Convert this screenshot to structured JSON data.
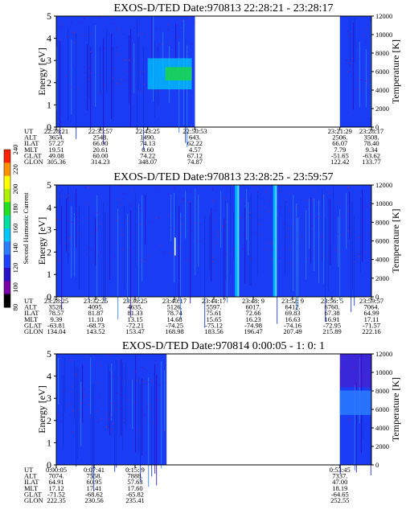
{
  "chart_data": [
    {
      "type": "heatmap",
      "title": "EXOS-D/TED   Date:970813  22:28:21 - 23:28:17",
      "ylabel": "Energy [eV]",
      "y2label": "Temperature [K]",
      "ylim": [
        0,
        5
      ],
      "y2lim": [
        0,
        12000
      ],
      "yticks": [
        "0",
        "1",
        "2",
        "3",
        "4",
        "5"
      ],
      "y2ticks": [
        "0",
        "2000",
        "4000",
        "6000",
        "8000",
        "10000",
        "12000"
      ],
      "data_spans": [
        [
          0.0,
          0.44
        ],
        [
          0.9,
          1.0
        ]
      ],
      "orbit_labels": [
        "UT",
        "ALT",
        "ILAT",
        "MLT",
        "GLAT",
        "GLON"
      ],
      "orbit_columns": [
        {
          "pos": 0.0,
          "values": [
            "22:28:21",
            "3654.",
            "57.27",
            "19.51",
            "49.08",
            "305.36"
          ]
        },
        {
          "pos": 0.14,
          "values": [
            "22:35:57",
            "2548.",
            "66.00",
            "20.61",
            "60.00",
            "314.23"
          ]
        },
        {
          "pos": 0.29,
          "values": [
            "22:43:25",
            "1490.",
            "74.13",
            "0.60",
            "74.22",
            "348.07"
          ]
        },
        {
          "pos": 0.44,
          "values": [
            "22:50:53",
            "643.",
            "62.22",
            "4.57",
            "67.12",
            "74.87"
          ]
        },
        {
          "pos": 0.9,
          "values": [
            "23:21:29",
            "2506.",
            "66.07",
            "7.79",
            "-51.65",
            "122.42"
          ]
        },
        {
          "pos": 1.0,
          "values": [
            "23:28:17",
            "3508.",
            "78.40",
            "9.34",
            "-63.62",
            "133.77"
          ]
        }
      ]
    },
    {
      "type": "heatmap",
      "title": "EXOS-D/TED   Date:970813  23:28:25 - 23:59:57",
      "ylabel": "Energy [eV]",
      "y2label": "Temperature [K]",
      "ylim": [
        0,
        5
      ],
      "y2lim": [
        0,
        12000
      ],
      "yticks": [
        "0",
        "1",
        "2",
        "3",
        "4",
        "5"
      ],
      "y2ticks": [
        "0",
        "2000",
        "4000",
        "6000",
        "8000",
        "10000",
        "12000"
      ],
      "data_spans": [
        [
          0.0,
          1.0
        ]
      ],
      "orbit_labels": [
        "UT",
        "ALT",
        "ILAT",
        "MLT",
        "GLAT",
        "GLON"
      ],
      "orbit_columns": [
        {
          "pos": 0.0,
          "values": [
            "23:28:25",
            "3528.",
            "78.57",
            "9.39",
            "-63.81",
            "134.04"
          ]
        },
        {
          "pos": 0.125,
          "values": [
            "23:32:25",
            "4095.",
            "81.87",
            "11.10",
            "-68.73",
            "143.52"
          ]
        },
        {
          "pos": 0.25,
          "values": [
            "23:36:25",
            "4635.",
            "81.33",
            "13.15",
            "-72.21",
            "153.47"
          ]
        },
        {
          "pos": 0.375,
          "values": [
            "23:40:17",
            "5126.",
            "78.74",
            "14.68",
            "-74.25",
            "168.98"
          ]
        },
        {
          "pos": 0.5,
          "values": [
            "23:44:17",
            "5597.",
            "75.61",
            "15.65",
            "-75.12",
            "183.56"
          ]
        },
        {
          "pos": 0.625,
          "values": [
            "23:48: 9",
            "6017.",
            "72.66",
            "16.23",
            "-74.98",
            "196.47"
          ]
        },
        {
          "pos": 0.75,
          "values": [
            "23:52: 9",
            "6412.",
            "69.83",
            "16.63",
            "-74.16",
            "207.49"
          ]
        },
        {
          "pos": 0.875,
          "values": [
            "23:56: 5",
            "6760.",
            "67.38",
            "16.91",
            "-72.95",
            "215.89"
          ]
        },
        {
          "pos": 1.0,
          "values": [
            "23:59:57",
            "7064.",
            "64.99",
            "17.11",
            "-71.57",
            "222.16"
          ]
        }
      ]
    },
    {
      "type": "heatmap",
      "title": "EXOS-D/TED   Date:970814  0:00:05 - 1: 0: 1",
      "ylabel": "Energy [eV]",
      "y2label": "Temperature [K]",
      "ylim": [
        0,
        5
      ],
      "y2lim": [
        0,
        12000
      ],
      "yticks": [
        "0",
        "1",
        "2",
        "3",
        "4",
        "5"
      ],
      "y2ticks": [
        "0",
        "2000",
        "4000",
        "6000",
        "8000",
        "10000",
        "12000"
      ],
      "data_spans": [
        [
          0.0,
          0.35
        ],
        [
          0.9,
          1.0
        ]
      ],
      "orbit_labels": [
        "UT",
        "ALT",
        "ILAT",
        "MLT",
        "GLAT",
        "GLON"
      ],
      "orbit_columns": [
        {
          "pos": 0.0,
          "values": [
            "0:00:05",
            "7074.",
            "64.91",
            "17.12",
            "-71.52",
            "222.35"
          ]
        },
        {
          "pos": 0.12,
          "values": [
            "0:07:41",
            "7558.",
            "60.95",
            "17.41",
            "-68.62",
            "230.56"
          ]
        },
        {
          "pos": 0.25,
          "values": [
            "0:15: 9",
            "7888.",
            "57.63",
            "17.60",
            "-65.82",
            "235.41"
          ]
        },
        {
          "pos": 0.9,
          "values": [
            "0:53:45",
            "7337.",
            "47.00",
            "18.19",
            "-64.65",
            "252.55"
          ]
        }
      ]
    }
  ],
  "colorbar": {
    "label": "Second Harmonic Current",
    "ticks": [
      "80",
      "100",
      "120",
      "140",
      "160",
      "180",
      "200",
      "220",
      "240"
    ],
    "colors": [
      "#000000",
      "#7a00a8",
      "#2a10c8",
      "#2040ff",
      "#2c7cff",
      "#00c8ff",
      "#00e0a0",
      "#20e020",
      "#b0f000",
      "#ffff00",
      "#ff9000",
      "#ff2000"
    ]
  }
}
